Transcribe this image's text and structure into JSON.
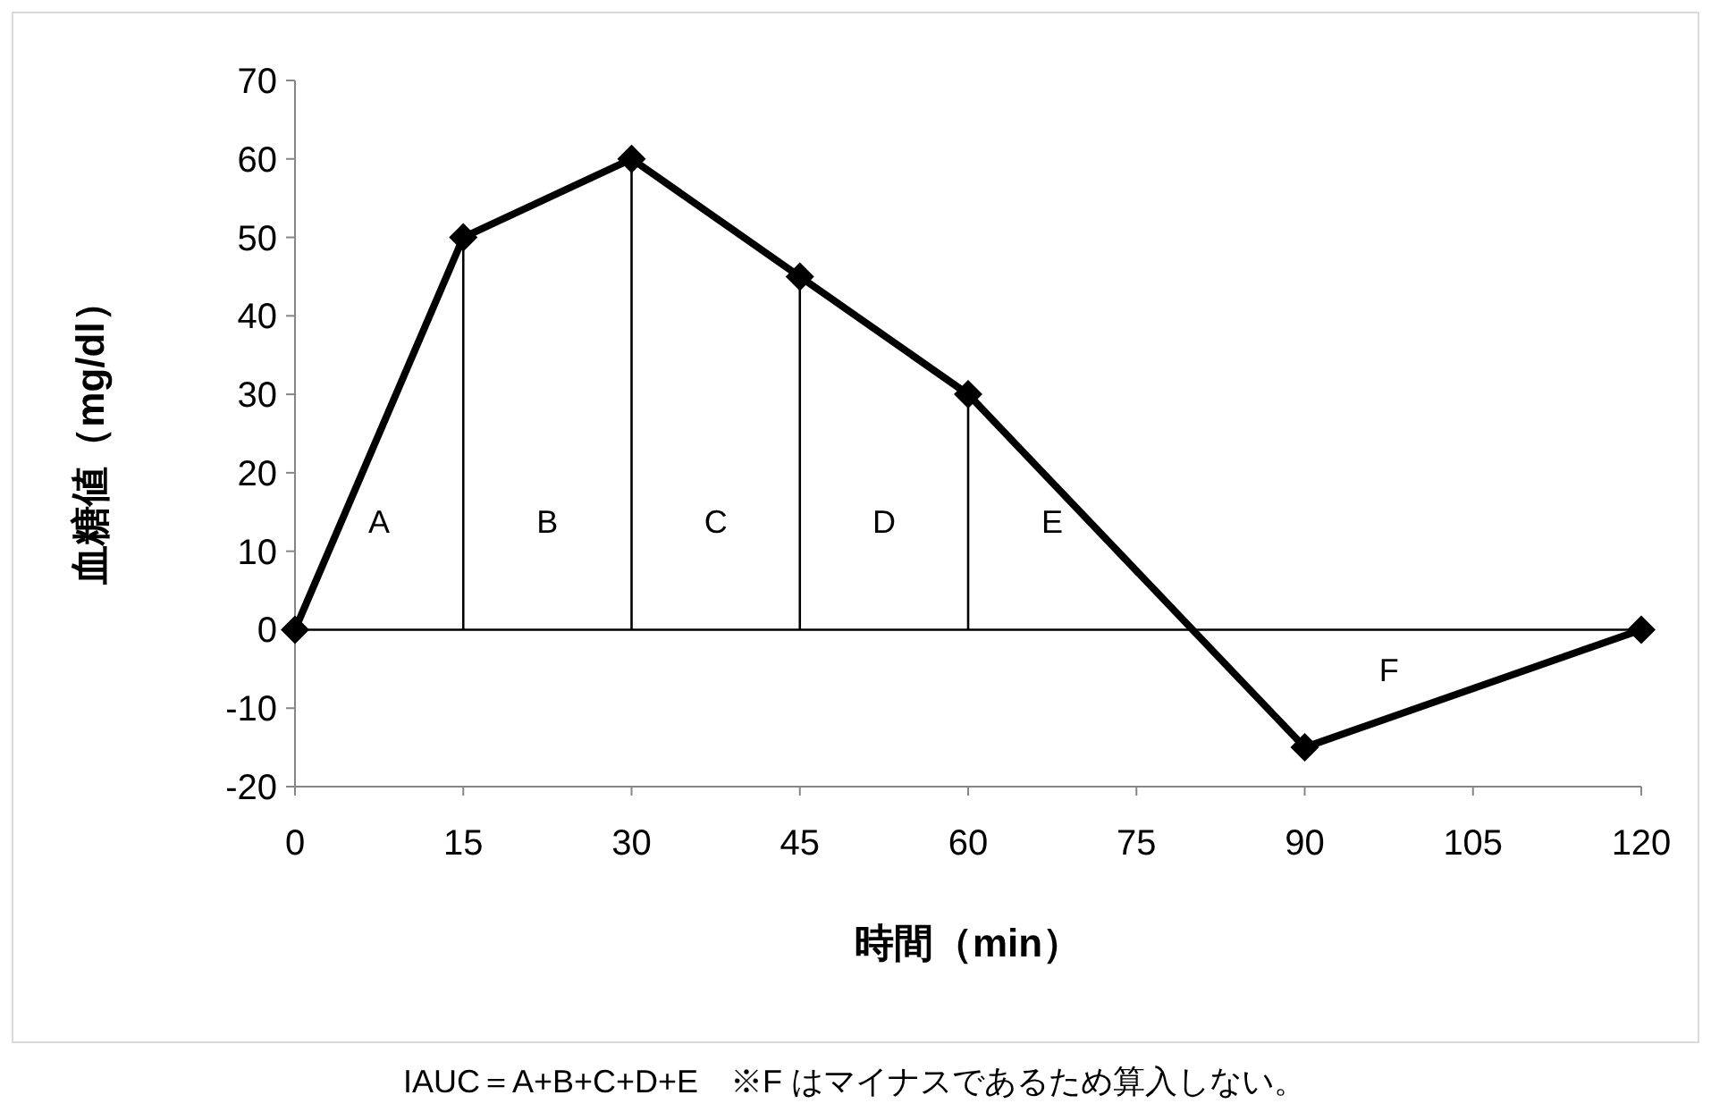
{
  "chart_data": {
    "type": "line",
    "xlabel": "時間（min）",
    "ylabel": "血糖値（mg/dl）",
    "x": [
      0,
      15,
      30,
      45,
      60,
      90,
      120
    ],
    "series": [
      {
        "color": "#000000",
        "values": [
          0,
          50,
          60,
          45,
          30,
          -15,
          0
        ]
      }
    ],
    "xlim": [
      0,
      120
    ],
    "xticks": [
      0,
      15,
      30,
      45,
      60,
      75,
      90,
      105,
      120
    ],
    "ylim": [
      -20,
      70
    ],
    "yticks": [
      -20,
      -10,
      0,
      10,
      20,
      30,
      40,
      50,
      60,
      70
    ],
    "marker": "diamond",
    "line_style": "solid",
    "grid": false,
    "ref_lines": [
      {
        "axis": "y",
        "value": 0,
        "color": "#000000"
      },
      {
        "axis": "x",
        "value": 15,
        "color": "#000000"
      },
      {
        "axis": "x",
        "value": 30,
        "color": "#000000"
      },
      {
        "axis": "x",
        "value": 45,
        "color": "#000000"
      },
      {
        "axis": "x",
        "value": 60,
        "color": "#000000"
      }
    ],
    "annotations": [
      "A",
      "B",
      "C",
      "D",
      "E",
      "F",
      "IAUC＝A+B+C+D+E　※F はマイナスであるため算入しない。"
    ]
  }
}
